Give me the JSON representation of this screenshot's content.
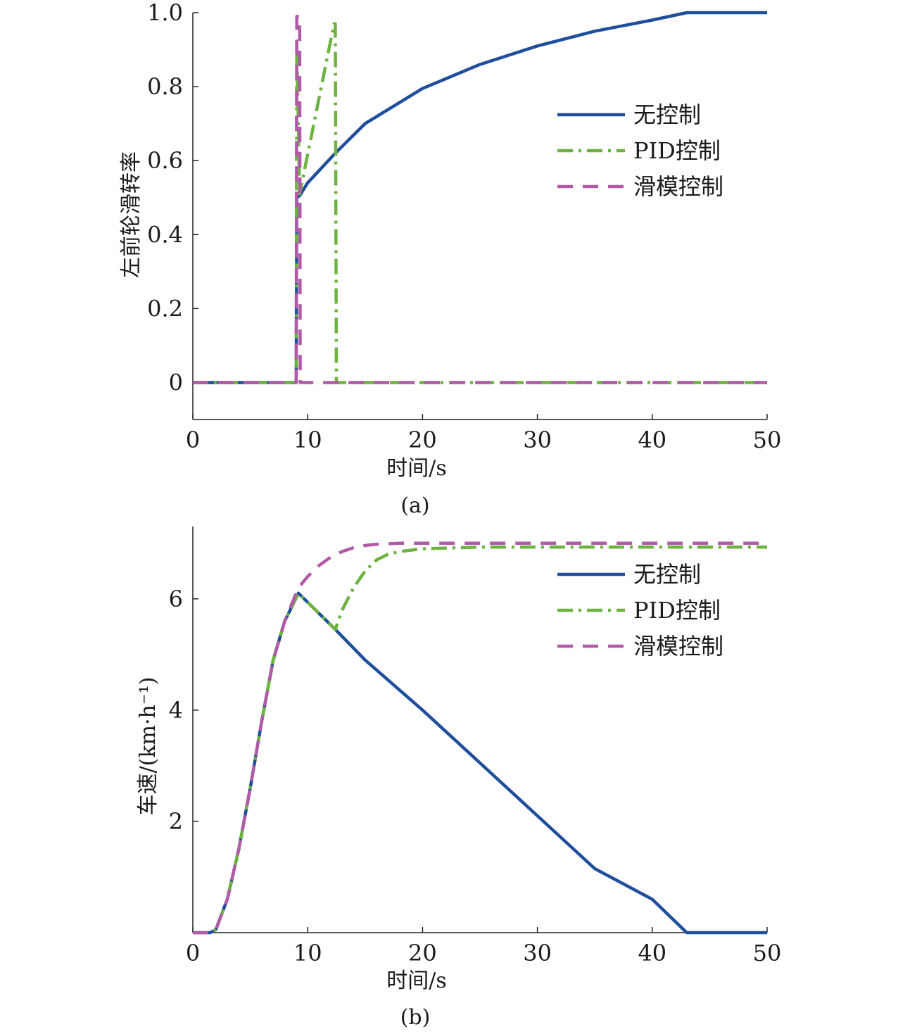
{
  "chart_data": [
    {
      "type": "line",
      "panel_label": "(a)",
      "xlabel": "时间/s",
      "ylabel": "左前轮滑转率",
      "xlim": [
        0,
        50
      ],
      "ylim": [
        -0.1,
        1.0
      ],
      "xticks": [
        "0",
        "10",
        "20",
        "30",
        "40",
        "50"
      ],
      "yticks": [
        "0",
        "0.2",
        "0.4",
        "0.6",
        "0.8",
        "1.0"
      ],
      "legend_position": "right",
      "series": [
        {
          "name": "无控制",
          "color": "#1f4e9c",
          "style": "solid",
          "x": [
            0,
            9.0,
            9.05,
            9.3,
            10,
            12.4,
            15,
            20,
            25,
            30,
            35,
            40,
            43,
            50
          ],
          "y": [
            0,
            0,
            0.5,
            0.505,
            0.54,
            0.62,
            0.7,
            0.795,
            0.86,
            0.91,
            0.95,
            0.98,
            1.0,
            1.0
          ]
        },
        {
          "name": "PID控制",
          "color": "#6db33f",
          "style": "dashdot",
          "x": [
            0,
            9.0,
            9.05,
            9.3,
            12.3,
            12.4,
            12.5,
            50
          ],
          "y": [
            0,
            0,
            0.92,
            0.51,
            0.97,
            0.97,
            0,
            0
          ]
        },
        {
          "name": "滑模控制",
          "color": "#b05aa8",
          "style": "dashed",
          "x": [
            0,
            9.0,
            9.05,
            9.3,
            9.35,
            50
          ],
          "y": [
            0,
            0,
            0.99,
            0.99,
            0,
            0
          ]
        }
      ]
    },
    {
      "type": "line",
      "panel_label": "(b)",
      "xlabel": "时间/s",
      "ylabel": "车速/(km·h⁻¹)",
      "xlim": [
        0,
        50
      ],
      "ylim": [
        0,
        7.3
      ],
      "xticks": [
        "0",
        "10",
        "20",
        "30",
        "40",
        "50"
      ],
      "yticks": [
        "2",
        "4",
        "6"
      ],
      "legend_position": "right",
      "series": [
        {
          "name": "无控制",
          "color": "#1f4e9c",
          "style": "solid",
          "x": [
            0,
            1.5,
            2,
            3,
            4,
            5,
            6,
            7,
            8,
            9.2,
            12.4,
            15,
            20,
            25,
            30,
            35,
            40,
            43,
            50
          ],
          "y": [
            0,
            0,
            0.05,
            0.6,
            1.5,
            2.6,
            3.8,
            4.9,
            5.6,
            6.1,
            5.45,
            4.9,
            4.0,
            3.05,
            2.1,
            1.15,
            0.6,
            0,
            0
          ]
        },
        {
          "name": "PID控制",
          "color": "#6db33f",
          "style": "dashdot",
          "x": [
            0,
            1.5,
            2,
            3,
            4,
            5,
            6,
            7,
            8,
            9.2,
            12.4,
            13,
            14,
            15,
            16,
            17,
            18,
            20,
            25,
            30,
            50
          ],
          "y": [
            0,
            0,
            0.05,
            0.6,
            1.5,
            2.6,
            3.8,
            4.9,
            5.6,
            6.1,
            5.45,
            5.8,
            6.2,
            6.5,
            6.7,
            6.8,
            6.85,
            6.9,
            6.93,
            6.93,
            6.93
          ]
        },
        {
          "name": "滑模控制",
          "color": "#b05aa8",
          "style": "dashed",
          "x": [
            0,
            1.5,
            2,
            3,
            4,
            5,
            6,
            7,
            8,
            9.2,
            10,
            11,
            12,
            13,
            14,
            15,
            16,
            18,
            20,
            30,
            50
          ],
          "y": [
            0,
            0,
            0.05,
            0.6,
            1.5,
            2.6,
            3.8,
            4.9,
            5.6,
            6.2,
            6.4,
            6.6,
            6.75,
            6.85,
            6.92,
            6.96,
            6.98,
            7.0,
            7.0,
            7.0,
            7.0
          ]
        }
      ]
    }
  ]
}
